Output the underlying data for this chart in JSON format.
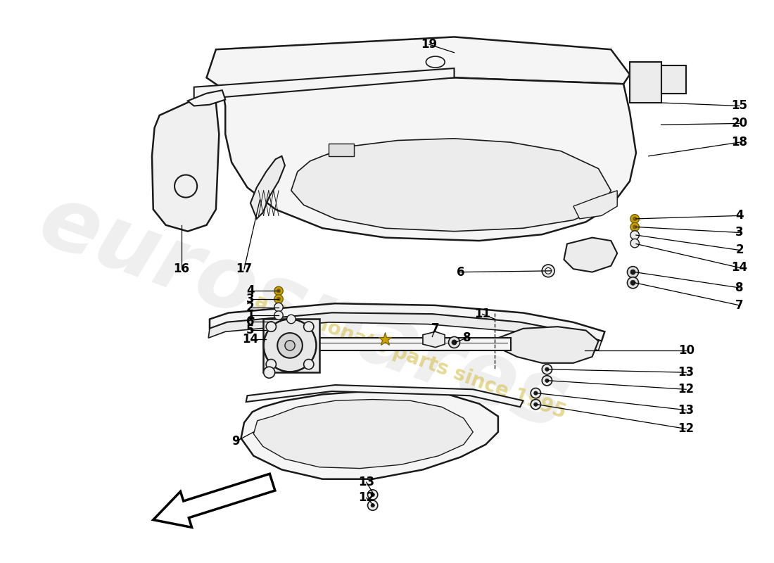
{
  "bg_color": "#ffffff",
  "line_color": "#1a1a1a",
  "figsize": [
    11.0,
    8.0
  ],
  "dpi": 100,
  "watermark_text1": "eurospares",
  "watermark_text2": "a passionate parts since 1995",
  "watermark_color1": "#cccccc",
  "watermark_color2": "#d4c050",
  "gold_color": "#c8a000",
  "gold_dark": "#7a6000",
  "fill_light": "#f5f5f5",
  "fill_mid": "#ececec",
  "fill_dark": "#e0e0e0"
}
